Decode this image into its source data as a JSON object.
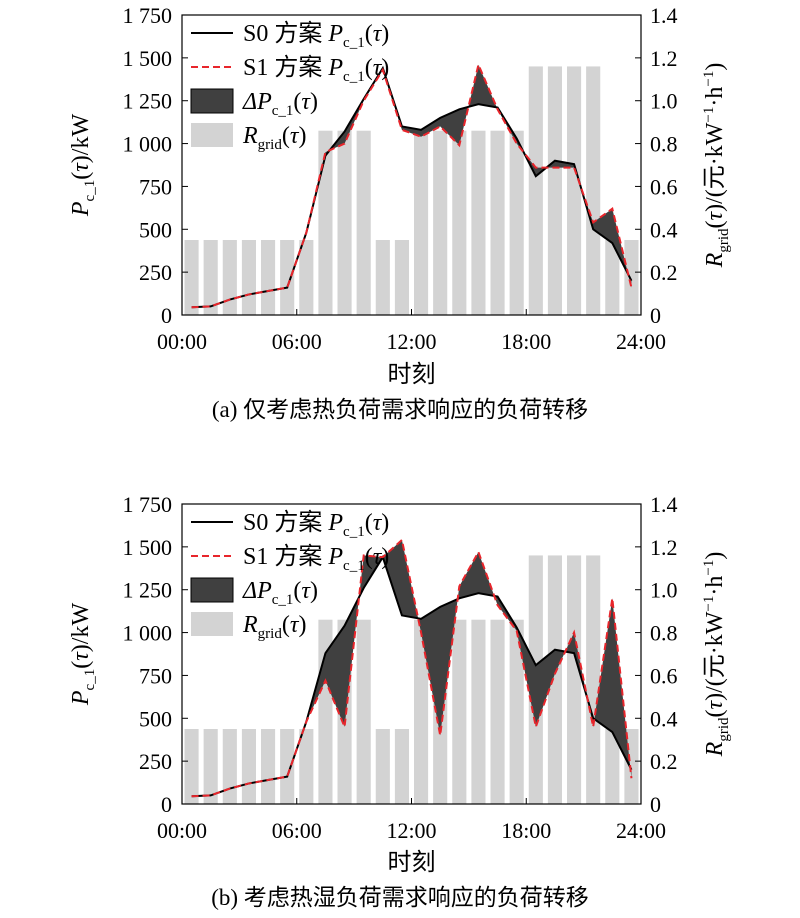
{
  "chart_data": [
    {
      "type": "line",
      "caption": "(a) 仅考虑热负荷需求响应的负荷转移",
      "xlabel": "时刻",
      "ylabel_left": "P_c_1(τ)/kW",
      "ylabel_right": "R_grid(τ)/(元·kW⁻¹·h⁻¹)",
      "xticks": [
        "00:00",
        "06:00",
        "12:00",
        "18:00",
        "24:00"
      ],
      "xlim": [
        0,
        24
      ],
      "ylim_left": [
        0,
        1750
      ],
      "yticks_left": [
        "0",
        "250",
        "500",
        "750",
        "1 000",
        "1 250",
        "1 500",
        "1 750"
      ],
      "ylim_right": [
        0,
        1.4
      ],
      "yticks_right": [
        "0",
        "0.2",
        "0.4",
        "0.6",
        "0.8",
        "1.0",
        "1.2",
        "1.4"
      ],
      "legend": [
        {
          "label": "S0 方案",
          "sym": "P",
          "sub": "c_1",
          "tail": "(τ)",
          "style": "solid"
        },
        {
          "label": "S1 方案",
          "sym": "P",
          "sub": "c_1",
          "tail": "(τ)",
          "style": "dashed"
        },
        {
          "label": "",
          "sym": "ΔP",
          "sub": "c_1",
          "tail": "(τ)",
          "style": "fill-dark"
        },
        {
          "label": "",
          "sym": "R",
          "sub": "grid",
          "tail": "(τ)",
          "style": "fill-light"
        }
      ],
      "colors": {
        "s0": "#000000",
        "s1": "#e8252b",
        "delta": "#404040",
        "price": "#d3d3d3"
      },
      "x": [
        0,
        1,
        2,
        3,
        4,
        5,
        6,
        7,
        8,
        9,
        10,
        11,
        12,
        13,
        14,
        15,
        16,
        17,
        18,
        19,
        20,
        21,
        22,
        23
      ],
      "price": [
        0.35,
        0.35,
        0.35,
        0.35,
        0.35,
        0.35,
        0.35,
        0.86,
        0.86,
        0.86,
        0.35,
        0.35,
        0.86,
        0.86,
        0.86,
        0.86,
        0.86,
        0.86,
        1.16,
        1.16,
        1.16,
        1.16,
        0.35,
        0.35
      ],
      "series": [
        {
          "name": "S0 方案",
          "values": [
            45,
            50,
            90,
            120,
            140,
            160,
            480,
            930,
            1070,
            1260,
            1440,
            1100,
            1080,
            1150,
            1200,
            1230,
            1210,
            1030,
            810,
            900,
            880,
            500,
            420,
            200
          ]
        },
        {
          "name": "S1 方案",
          "values": [
            45,
            50,
            90,
            120,
            140,
            160,
            480,
            950,
            1000,
            1250,
            1430,
            1080,
            1040,
            1100,
            990,
            1460,
            1200,
            1000,
            860,
            860,
            860,
            540,
            620,
            160
          ]
        }
      ]
    },
    {
      "type": "line",
      "caption": "(b) 考虑热湿负荷需求响应的负荷转移",
      "xlabel": "时刻",
      "ylabel_left": "P_c_1(τ)/kW",
      "ylabel_right": "R_grid(τ)/(元·kW⁻¹·h⁻¹)",
      "xticks": [
        "00:00",
        "06:00",
        "12:00",
        "18:00",
        "24:00"
      ],
      "xlim": [
        0,
        24
      ],
      "ylim_left": [
        0,
        1750
      ],
      "yticks_left": [
        "0",
        "250",
        "500",
        "750",
        "1 000",
        "1 250",
        "1 500",
        "1 750"
      ],
      "ylim_right": [
        0,
        1.4
      ],
      "yticks_right": [
        "0",
        "0.2",
        "0.4",
        "0.6",
        "0.8",
        "1.0",
        "1.2",
        "1.4"
      ],
      "legend": [
        {
          "label": "S0 方案",
          "sym": "P",
          "sub": "c_1",
          "tail": "(τ)",
          "style": "solid"
        },
        {
          "label": "S1 方案",
          "sym": "P",
          "sub": "c_1",
          "tail": "(τ)",
          "style": "dashed"
        },
        {
          "label": "",
          "sym": "ΔP",
          "sub": "c_1",
          "tail": "(τ)",
          "style": "fill-dark"
        },
        {
          "label": "",
          "sym": "R",
          "sub": "grid",
          "tail": "(τ)",
          "style": "fill-light"
        }
      ],
      "colors": {
        "s0": "#000000",
        "s1": "#e8252b",
        "delta": "#404040",
        "price": "#d3d3d3"
      },
      "x": [
        0,
        1,
        2,
        3,
        4,
        5,
        6,
        7,
        8,
        9,
        10,
        11,
        12,
        13,
        14,
        15,
        16,
        17,
        18,
        19,
        20,
        21,
        22,
        23
      ],
      "price": [
        0.35,
        0.35,
        0.35,
        0.35,
        0.35,
        0.35,
        0.35,
        0.86,
        0.86,
        0.86,
        0.35,
        0.35,
        0.86,
        0.86,
        0.86,
        0.86,
        0.86,
        0.86,
        1.16,
        1.16,
        1.16,
        1.16,
        0.35,
        0.35
      ],
      "series": [
        {
          "name": "S0 方案",
          "values": [
            45,
            50,
            90,
            120,
            140,
            160,
            480,
            880,
            1040,
            1260,
            1440,
            1100,
            1080,
            1150,
            1200,
            1230,
            1210,
            1030,
            810,
            900,
            880,
            500,
            420,
            200
          ]
        },
        {
          "name": "S1 方案",
          "values": [
            45,
            50,
            90,
            120,
            140,
            160,
            480,
            720,
            450,
            1450,
            1440,
            1540,
            1000,
            400,
            1270,
            1470,
            1160,
            1010,
            450,
            760,
            1000,
            450,
            1200,
            150
          ]
        }
      ]
    }
  ]
}
